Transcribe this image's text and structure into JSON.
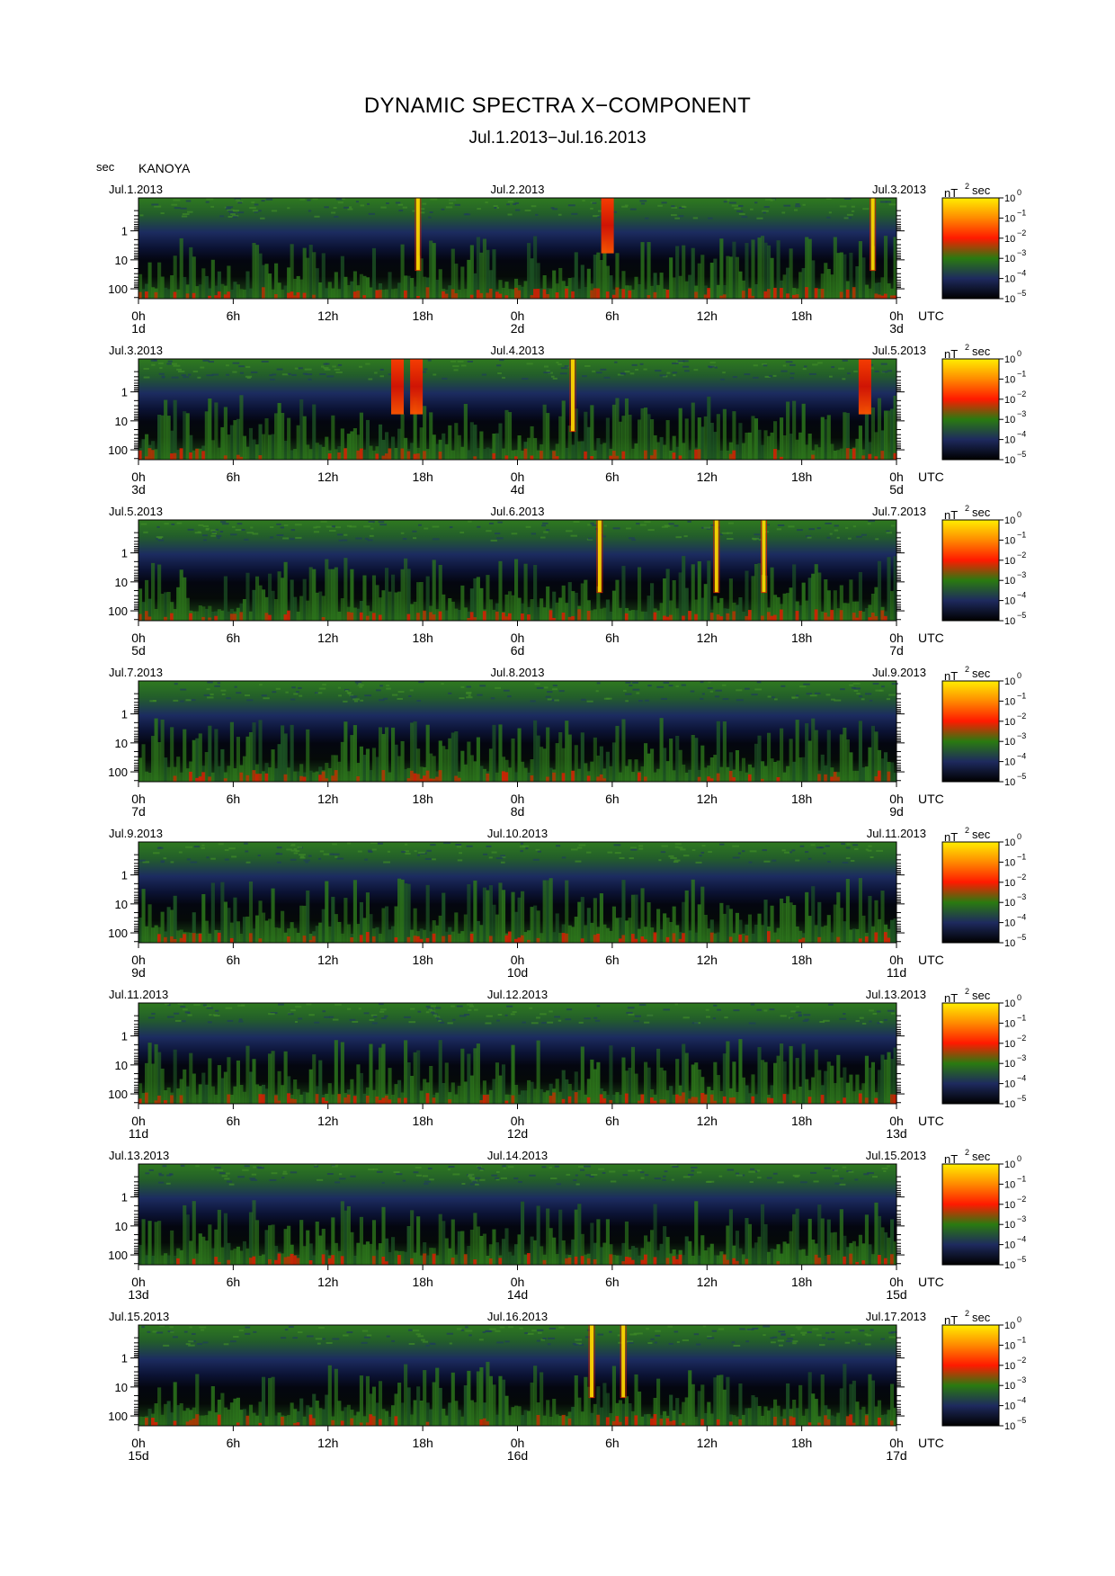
{
  "header": {
    "title": "DYNAMIC SPECTRA X−COMPONENT",
    "subtitle": "Jul.1.2013−Jul.16.2013",
    "y_unit": "sec",
    "station": "KANOYA"
  },
  "colorbar": {
    "unit_base": "nT",
    "unit_exp": "2",
    "unit_tail": "sec",
    "tick_base": "10",
    "tick_exps": [
      "0",
      "−1",
      "−2",
      "−3",
      "−4",
      "−5"
    ],
    "stops": [
      "#ffee00",
      "#ff8a00",
      "#ff1a00",
      "#2a7a10",
      "#1e2a5e",
      "#000000"
    ]
  },
  "chart_data": {
    "type": "heatmap",
    "x_unit": "UTC",
    "y_ticks": [
      "1",
      "10",
      "100"
    ],
    "x_ticks": [
      "0h",
      "6h",
      "12h",
      "18h",
      "0h",
      "6h",
      "12h",
      "18h",
      "0h"
    ],
    "panels": [
      {
        "left": "Jul.1.2013",
        "mid": "Jul.2.2013",
        "right": "Jul.3.2013",
        "days": [
          "1d",
          "2d",
          "3d"
        ],
        "spikes": [
          {
            "t": 17.7,
            "c": "y"
          },
          {
            "t": 29.7,
            "c": "r",
            "wide": true
          },
          {
            "t": 46.5,
            "c": "y"
          }
        ]
      },
      {
        "left": "Jul.3.2013",
        "mid": "Jul.4.2013",
        "right": "Jul.5.2013",
        "days": [
          "3d",
          "4d",
          "5d"
        ],
        "spikes": [
          {
            "t": 16.4,
            "c": "r",
            "wide": true
          },
          {
            "t": 17.6,
            "c": "r",
            "wide": true
          },
          {
            "t": 27.5,
            "c": "y"
          },
          {
            "t": 46.0,
            "c": "r",
            "wide": true
          }
        ]
      },
      {
        "left": "Jul.5.2013",
        "mid": "Jul.6.2013",
        "right": "Jul.7.2013",
        "days": [
          "5d",
          "6d",
          "7d"
        ],
        "spikes": [
          {
            "t": 29.2,
            "c": "y"
          },
          {
            "t": 36.6,
            "c": "y"
          },
          {
            "t": 39.6,
            "c": "y"
          }
        ]
      },
      {
        "left": "Jul.7.2013",
        "mid": "Jul.8.2013",
        "right": "Jul.9.2013",
        "days": [
          "7d",
          "8d",
          "9d"
        ],
        "spikes": []
      },
      {
        "left": "Jul.9.2013",
        "mid": "Jul.10.2013",
        "right": "Jul.11.2013",
        "days": [
          "9d",
          "10d",
          "11d"
        ],
        "spikes": []
      },
      {
        "left": "Jul.11.2013",
        "mid": "Jul.12.2013",
        "right": "Jul.13.2013",
        "days": [
          "11d",
          "12d",
          "13d"
        ],
        "spikes": []
      },
      {
        "left": "Jul.13.2013",
        "mid": "Jul.14.2013",
        "right": "Jul.15.2013",
        "days": [
          "13d",
          "14d",
          "15d"
        ],
        "spikes": []
      },
      {
        "left": "Jul.15.2013",
        "mid": "Jul.16.2013",
        "right": "Jul.17.2013",
        "days": [
          "15d",
          "16d",
          "17d"
        ],
        "spikes": [
          {
            "t": 28.7,
            "c": "y"
          },
          {
            "t": 30.7,
            "c": "y"
          }
        ]
      }
    ]
  }
}
